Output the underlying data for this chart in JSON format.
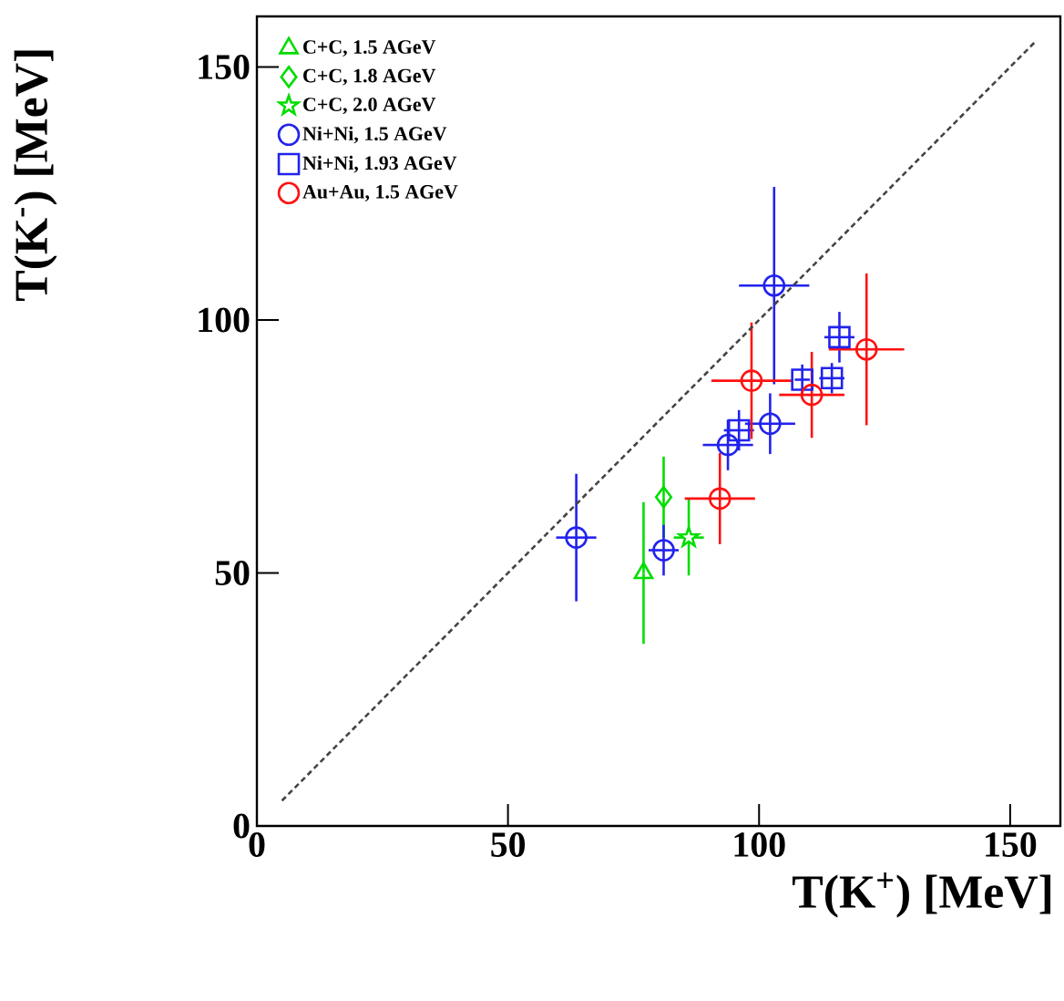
{
  "chart_data": {
    "type": "scatter",
    "xlabel": "T(K$^{+}$) [MeV]",
    "ylabel": "T(K$^{-}$) [MeV]",
    "xlim": [
      0,
      160
    ],
    "ylim": [
      0,
      160
    ],
    "xticks": [
      0,
      50,
      100,
      150
    ],
    "yticks": [
      0,
      50,
      100,
      150
    ],
    "grid": false,
    "legend": "top left",
    "series": [
      {
        "name": "C+C, 1.5 AGeV",
        "color": "#00dd00",
        "marker": "triangle",
        "x": [
          77
        ],
        "values": [
          50
        ],
        "errors": [
          14
        ]
      },
      {
        "name": "C+C, 1.8 AGeV",
        "color": "#00dd00",
        "marker": "diamond",
        "x": [
          81
        ],
        "values": [
          65
        ],
        "errors": [
          8
        ]
      },
      {
        "name": "C+C, 2.0 AGeV",
        "color": "#00dd00",
        "marker": "star",
        "x": [
          86
        ],
        "values": [
          57
        ],
        "errors": [
          7.5
        ],
        "xerrors": [
          3
        ]
      },
      {
        "name": "Ni+Ni, 1.5 AGeV",
        "color": "#2222ee",
        "marker": "circle",
        "x": [
          63.6,
          81,
          93.8,
          102.2,
          103
        ],
        "values": [
          57,
          54.5,
          75.3,
          79.5,
          106.8
        ],
        "errors": [
          12.6,
          5,
          5,
          6,
          19.5
        ],
        "xerrors": [
          4,
          3,
          5,
          5,
          7
        ]
      },
      {
        "name": "Ni+Ni, 1.93 AGeV",
        "color": "#2222ee",
        "marker": "square",
        "x": [
          96,
          108.6,
          114.5,
          116
        ],
        "values": [
          78.2,
          88.2,
          88.5,
          96.6
        ],
        "errors": [
          4,
          3,
          3,
          5
        ],
        "xerrors": [
          3,
          1.5,
          2.5,
          3
        ]
      },
      {
        "name": "Au+Au, 1.5 AGeV",
        "color": "#ff1111",
        "marker": "circle",
        "x": [
          92.2,
          98.5,
          110.5,
          121.4
        ],
        "values": [
          64.7,
          88,
          85.2,
          94.2
        ],
        "errors": [
          9,
          11.5,
          8.5,
          15
        ],
        "xerrors": [
          7,
          8,
          6.5,
          7.5
        ]
      },
      {
        "type": "line",
        "color": "#444444",
        "line_style": "dashed",
        "marker": "none",
        "x": [
          5,
          155
        ],
        "values": [
          5,
          155
        ]
      }
    ]
  }
}
